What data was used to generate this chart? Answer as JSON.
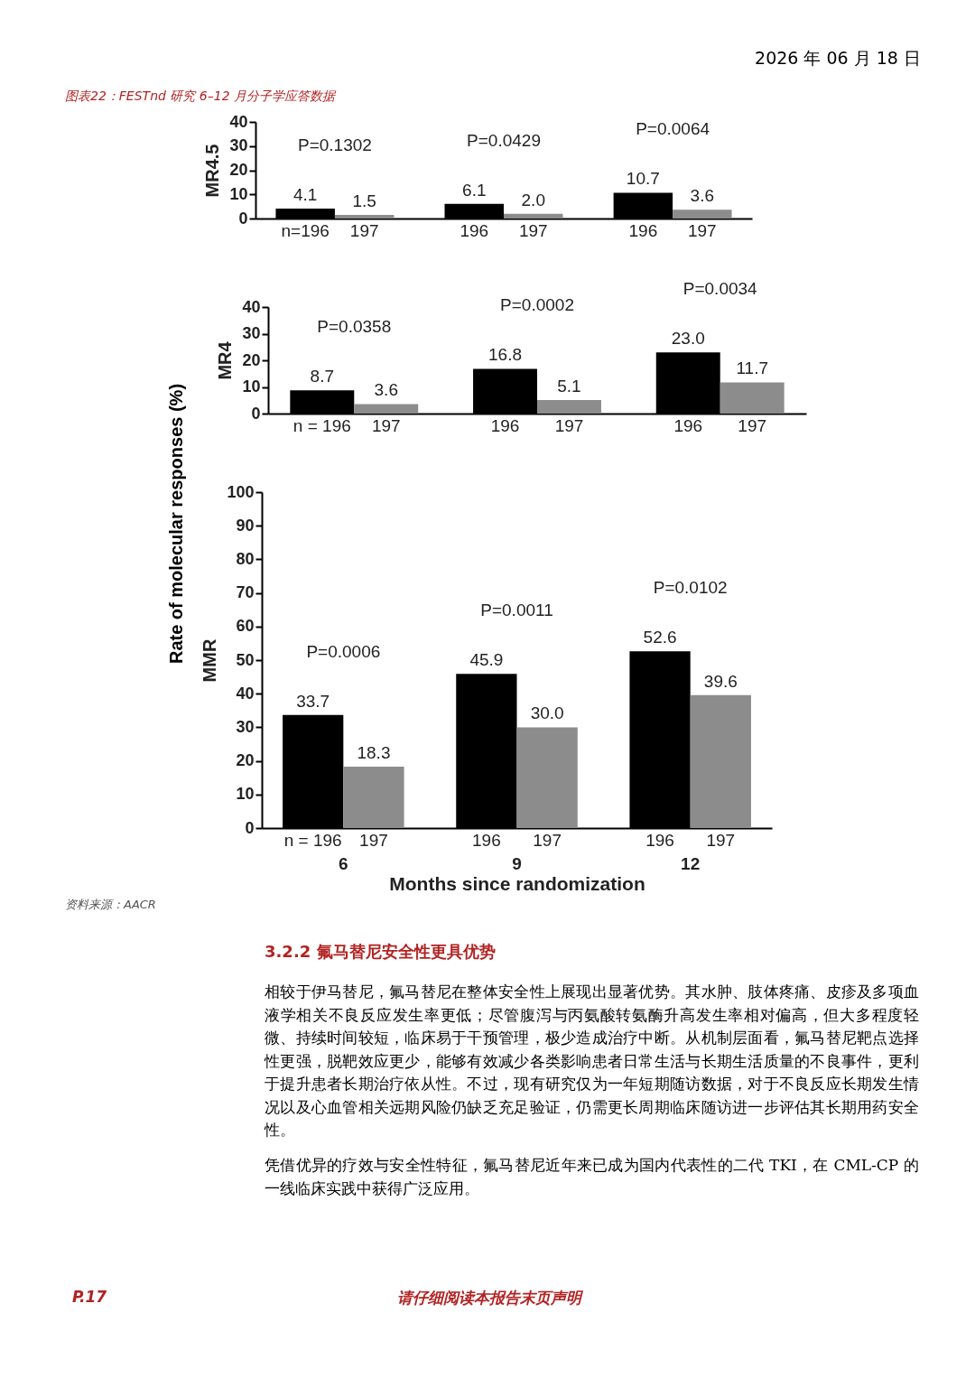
{
  "chart_data": [
    {
      "type": "bar",
      "title": "图表22：FESTnd 研究 6–12 月分子学应答数据",
      "ylabel": "MR4.5",
      "categories": [
        null,
        null,
        null
      ],
      "tick_labels": "y",
      "ylim": [
        0,
        40
      ],
      "yticks": [
        0,
        10,
        20,
        30,
        40
      ],
      "series": [
        {
          "color": "#000000",
          "values": [
            4.1,
            6.1,
            10.7
          ],
          "value_labels": [
            "4.1",
            "6.1",
            "10.7"
          ]
        },
        {
          "color": "#8c8c8c",
          "values": [
            1.5,
            2.0,
            3.6
          ],
          "value_labels": [
            "1.5",
            "2.0",
            "3.6"
          ]
        }
      ],
      "annotations": [
        "P=0.1302",
        "P=0.0429",
        "P=0.0064",
        "n=196",
        "197",
        "196",
        "197",
        "196",
        "197",
        "2026 年 06 月 18 日"
      ]
    },
    {
      "type": "bar",
      "ylabel": "MR4",
      "categories": [
        null,
        null,
        null
      ],
      "tick_labels": "y",
      "ylim": [
        0,
        40
      ],
      "yticks": [
        0,
        10,
        20,
        30,
        40
      ],
      "series": [
        {
          "color": "#000000",
          "values": [
            8.7,
            16.8,
            23.0
          ],
          "value_labels": [
            "8.7",
            "16.8",
            "23.0"
          ]
        },
        {
          "color": "#8c8c8c",
          "values": [
            3.6,
            5.1,
            11.7
          ],
          "value_labels": [
            "3.6",
            "5.1",
            "11.7"
          ]
        }
      ],
      "annotations": [
        "P=0.0358",
        "P=0.0002",
        "P=0.0034",
        "n = 196",
        "197",
        "196",
        "197",
        "196",
        "197",
        "Rate of molecular responses (%)"
      ]
    },
    {
      "type": "bar",
      "ylabel": "MMR",
      "xlabel": "Months since randomization",
      "categories": [
        "6",
        "9",
        "12"
      ],
      "ylim": [
        0,
        100
      ],
      "yticks": [
        0,
        10,
        20,
        30,
        40,
        50,
        60,
        70,
        80,
        90,
        100
      ],
      "series": [
        {
          "color": "#000000",
          "values": [
            33.7,
            45.9,
            52.6
          ],
          "value_labels": [
            "33.7",
            "45.9",
            "52.6"
          ]
        },
        {
          "color": "#8c8c8c",
          "values": [
            18.3,
            30.0,
            39.6
          ],
          "value_labels": [
            "18.3",
            "30.0",
            "39.6"
          ]
        }
      ],
      "annotations": [
        "P=0.0006",
        "P=0.0011",
        "P=0.0102",
        "n = 196",
        "197",
        "196",
        "197",
        "196",
        "197",
        "资料来源：AACR",
        "3.2.2 氟马替尼安全性更具优势",
        "相较于伊马替尼，氟马替尼在整体安全性上展现出显著优势。其水肿、肢体疼痛、皮疹及多项血液学相关不良反应发生率更低；尽管腹泻与丙氨酸转氨酶升高发生率相对偏高，但大多程度轻微、持续时间较短，临床易于干预管理，极少造成治疗中断。从机制层面看，氟马替尼靶点选择性更强，脱靶效应更少，能够有效减少各类影响患者日常生活与长期生活质量的不良事件，更利于提升患者长期治疗依从性。不过，现有研究仅为一年短期随访数据，对于不良反应长期发生情况以及心血管相关远期风险仍缺乏充足验证，仍需更长周期临床随访进一步评估其长期用药安全性。",
        "凭借优异的疗效与安全性特征，氟马替尼近年来已成为国内代表性的二代 TKI，在 CML-CP 的一线临床实践中获得广泛应用。",
        "P.17",
        "请仔细阅读本报告末页声明"
      ]
    }
  ]
}
